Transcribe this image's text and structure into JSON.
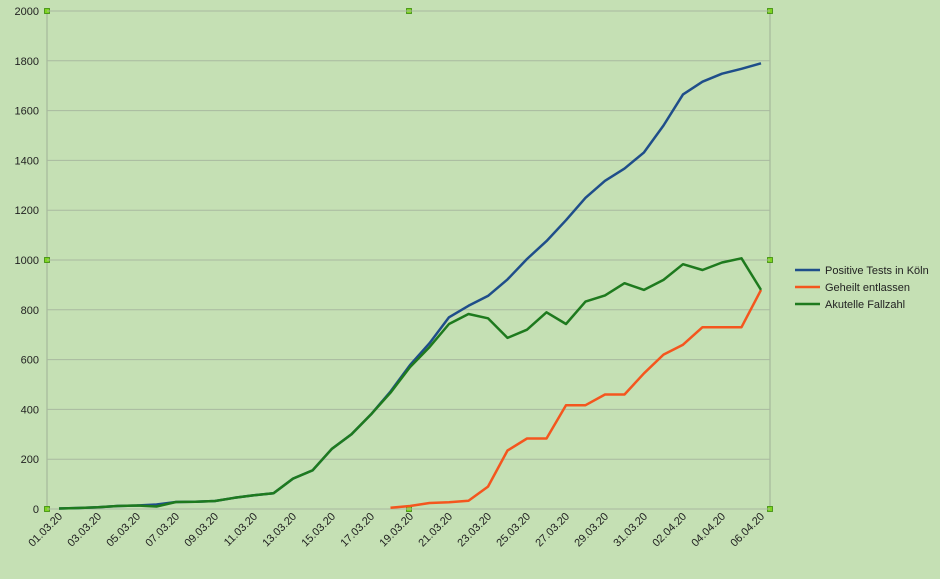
{
  "chart_data": {
    "type": "line",
    "categories": [
      "01.03.20",
      null,
      "03.03.20",
      null,
      "05.03.20",
      null,
      "07.03.20",
      null,
      "09.03.20",
      null,
      "11.03.20",
      null,
      "13.03.20",
      null,
      "15.03.20",
      null,
      "17.03.20",
      null,
      "19.03.20",
      null,
      "21.03.20",
      null,
      "23.03.20",
      null,
      "25.03.20",
      null,
      "27.03.20",
      null,
      "29.03.20",
      null,
      "31.03.20",
      null,
      "02.04.20",
      null,
      "04.04.20",
      null,
      "06.04.20"
    ],
    "series": [
      {
        "name": "Positive Tests in Köln",
        "color": "#1f4e8a",
        "values": [
          2,
          4,
          7,
          12,
          14,
          18,
          28,
          29,
          32,
          45,
          55,
          63,
          122,
          155,
          242,
          300,
          380,
          472,
          578,
          666,
          770,
          816,
          856,
          922,
          1004,
          1076,
          1160,
          1250,
          1318,
          1367,
          1432,
          1540,
          1665,
          1716,
          1748,
          1768,
          1790
        ]
      },
      {
        "name": "Geheilt entlassen",
        "color": "#f4561e",
        "values": [
          null,
          null,
          null,
          null,
          null,
          null,
          null,
          null,
          null,
          null,
          null,
          null,
          null,
          null,
          null,
          null,
          null,
          5,
          12,
          24,
          27,
          33,
          90,
          235,
          283,
          283,
          417,
          417,
          460,
          460,
          545,
          620,
          660,
          730,
          730,
          730,
          880
        ]
      },
      {
        "name": "Akutelle Fallzahl",
        "color": "#1e7a1e",
        "values": [
          2,
          4,
          7,
          12,
          14,
          10,
          28,
          29,
          32,
          45,
          55,
          63,
          122,
          155,
          242,
          300,
          380,
          467,
          570,
          650,
          743,
          783,
          766,
          687,
          720,
          790,
          743,
          833,
          858,
          907,
          880,
          920,
          983,
          960,
          990,
          1007,
          880
        ]
      }
    ],
    "ylim": [
      0,
      2000
    ],
    "yticks": [
      0,
      200,
      400,
      600,
      800,
      1000,
      1200,
      1400,
      1600,
      1800,
      2000
    ],
    "grid": true,
    "legend": "right"
  }
}
